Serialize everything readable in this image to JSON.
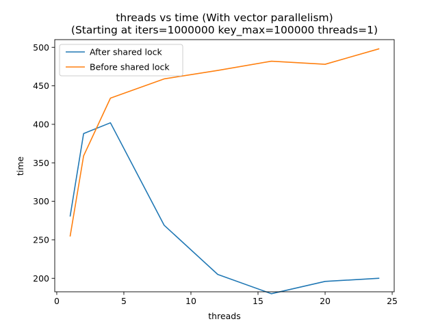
{
  "chart_data": {
    "type": "line",
    "title": "threads vs time (With vector parallelism)",
    "subtitle": "(Starting at iters=1000000 key_max=100000 threads=1)",
    "xlabel": "threads",
    "ylabel": "time",
    "xlim": [
      -0.15,
      25.15
    ],
    "ylim": [
      182.5,
      510.0
    ],
    "xticks": [
      0,
      5,
      10,
      15,
      20,
      25
    ],
    "yticks": [
      200,
      250,
      300,
      350,
      400,
      450,
      500
    ],
    "grid": false,
    "legend": {
      "placement": "top-left"
    },
    "x": [
      1,
      2,
      4,
      8,
      12,
      16,
      20,
      24
    ],
    "series": [
      {
        "name": "After shared lock",
        "color": "#1f77b4",
        "values": [
          281,
          388,
          402,
          269,
          205,
          180,
          196,
          200
        ]
      },
      {
        "name": "Before shared lock",
        "color": "#ff7f0e",
        "values": [
          255,
          359,
          434,
          459,
          470,
          482,
          478,
          498
        ]
      }
    ]
  }
}
